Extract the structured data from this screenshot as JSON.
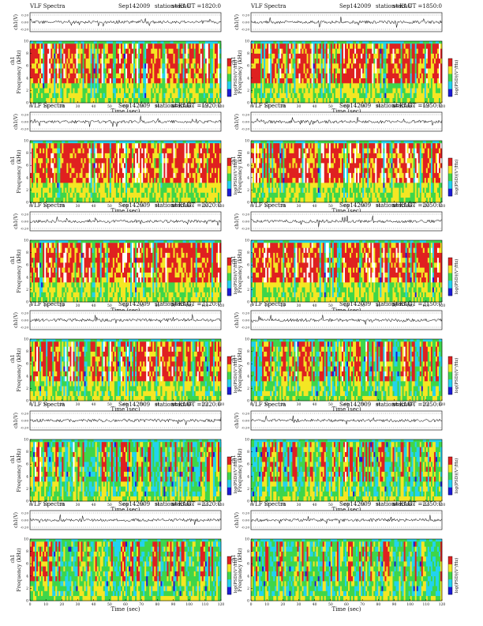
{
  "chart_data": {
    "type": "heatmap",
    "common": {
      "title_left": "VLF Spectra",
      "date": "Sep142009",
      "station": "station=KAG",
      "start_label": "start UT =",
      "waveform_ylabel": "ch1(V)",
      "waveform_ticks": [
        "0.20",
        "0.00",
        "-0.20"
      ],
      "waveform_ylim": [
        -0.2,
        0.2
      ],
      "spectrogram_ylabel": "Frequency (kHz)",
      "spectrogram_ylabel_alt": "ch1",
      "y_ticks": [
        0,
        2,
        4,
        6,
        8,
        10
      ],
      "ylim": [
        0,
        10
      ],
      "xlabel": "Time (sec)",
      "x_ticks": [
        0,
        10,
        20,
        30,
        40,
        50,
        60,
        70,
        80,
        90,
        100,
        110,
        120
      ],
      "xlim": [
        0,
        120
      ],
      "colorbar_label": "log(PSD)(V²/Hz)",
      "colormap": [
        "#1b1bd6",
        "#22d3ee",
        "#3ed64a",
        "#f5e623",
        "#e02020",
        "#ffffff"
      ]
    },
    "panels": [
      {
        "start_ut": "1820:0",
        "activity": 0.82
      },
      {
        "start_ut": "1850:0",
        "activity": 0.8
      },
      {
        "start_ut": "1920:0",
        "activity": 0.84
      },
      {
        "start_ut": "1950:0",
        "activity": 0.86
      },
      {
        "start_ut": "2020:0",
        "activity": 0.83
      },
      {
        "start_ut": "2050:0",
        "activity": 0.82
      },
      {
        "start_ut": "2120:0",
        "activity": 0.62
      },
      {
        "start_ut": "2150:0",
        "activity": 0.5
      },
      {
        "start_ut": "2220:0",
        "activity": 0.36
      },
      {
        "start_ut": "2250:0",
        "activity": 0.3
      },
      {
        "start_ut": "2320:0",
        "activity": 0.28
      },
      {
        "start_ut": "2350:0",
        "activity": 0.2
      }
    ]
  }
}
